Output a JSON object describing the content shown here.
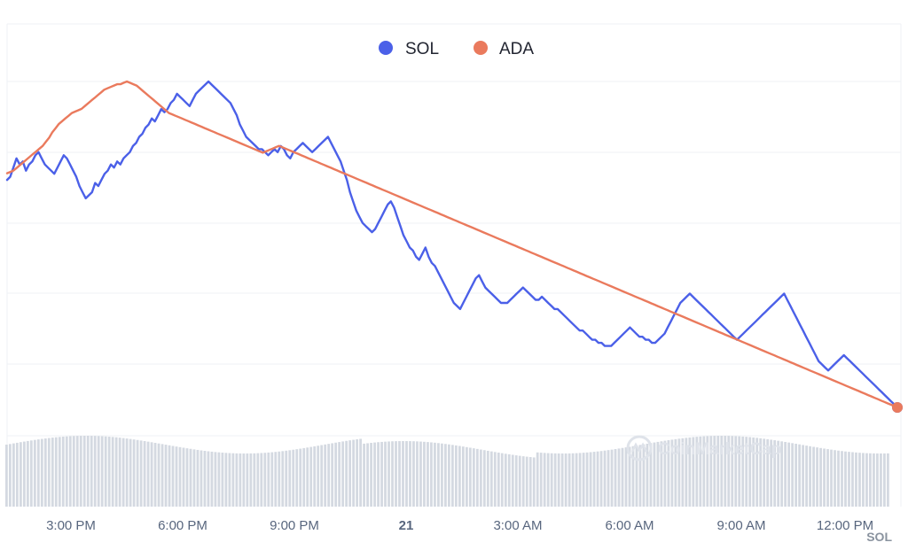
{
  "chart_data": {
    "type": "line",
    "x_labels": [
      "3:00 PM",
      "6:00 PM",
      "9:00 PM",
      "21",
      "3:00 AM",
      "6:00 AM",
      "9:00 AM",
      "12:00 PM"
    ],
    "x_label_emphasis": "21",
    "grid": "horizontal",
    "legend_position": "top-center",
    "series": [
      {
        "name": "SOL",
        "color": "#4b60e8",
        "values": [
          62,
          63,
          66,
          69,
          67,
          68,
          65,
          67,
          68,
          70,
          71,
          69,
          67,
          66,
          65,
          64,
          66,
          68,
          70,
          69,
          67,
          65,
          63,
          60,
          58,
          56,
          57,
          58,
          61,
          60,
          62,
          64,
          65,
          67,
          66,
          68,
          67,
          69,
          70,
          71,
          73,
          74,
          76,
          77,
          79,
          80,
          82,
          81,
          83,
          85,
          84,
          85,
          87,
          88,
          90,
          89,
          88,
          87,
          86,
          88,
          90,
          91,
          92,
          93,
          94,
          93,
          92,
          91,
          90,
          89,
          88,
          87,
          85,
          83,
          80,
          78,
          76,
          75,
          74,
          73,
          72,
          72,
          71,
          70,
          71,
          72,
          71,
          73,
          72,
          70,
          69,
          71,
          72,
          73,
          74,
          73,
          72,
          71,
          72,
          73,
          74,
          75,
          76,
          74,
          72,
          70,
          68,
          65,
          62,
          58,
          55,
          52,
          50,
          48,
          47,
          46,
          45,
          46,
          48,
          50,
          52,
          54,
          55,
          53,
          50,
          47,
          44,
          42,
          40,
          39,
          37,
          36,
          38,
          40,
          37,
          35,
          34,
          32,
          30,
          28,
          26,
          24,
          22,
          21,
          20,
          22,
          24,
          26,
          28,
          30,
          31,
          29,
          27,
          26,
          25,
          24,
          23,
          22,
          22,
          22,
          23,
          24,
          25,
          26,
          27,
          26,
          25,
          24,
          23,
          23,
          24,
          23,
          22,
          21,
          20,
          20,
          19,
          18,
          17,
          16,
          15,
          14,
          13,
          13,
          12,
          11,
          10,
          10,
          9,
          9,
          8,
          8,
          8,
          9,
          10,
          11,
          12,
          13,
          14,
          13,
          12,
          11,
          11,
          10,
          10,
          9,
          9,
          10,
          11,
          12,
          14,
          16,
          18,
          20,
          22,
          23,
          24,
          25,
          24,
          23,
          22,
          21,
          20,
          19,
          18,
          17,
          16,
          15,
          14,
          13,
          12,
          11,
          10,
          11,
          12,
          13,
          14,
          15,
          16,
          17,
          18,
          19,
          20,
          21,
          22,
          23,
          24,
          25,
          23,
          21,
          19,
          17,
          15,
          13,
          11,
          9,
          7,
          5,
          3,
          2,
          1,
          0,
          1,
          2,
          3,
          4,
          5,
          4,
          3,
          2,
          1,
          0,
          -1,
          -2,
          -3,
          -4,
          -5,
          -6,
          -7,
          -8,
          -9,
          -10,
          -11,
          -12
        ]
      },
      {
        "name": "ADA",
        "color": "#ea7a5d",
        "values": [
          30,
          31,
          32,
          34,
          36,
          38,
          40,
          42,
          44,
          46,
          48,
          50,
          53,
          56,
          60,
          63,
          66,
          68,
          70,
          72,
          74,
          75,
          76,
          77,
          79,
          81,
          83,
          85,
          87,
          89,
          91,
          92,
          93,
          94,
          95,
          95,
          96,
          97,
          96,
          95,
          94,
          92,
          90,
          88,
          86,
          84,
          82,
          80,
          78,
          76,
          74,
          73,
          72,
          71,
          70,
          69,
          68,
          67,
          66,
          65,
          64,
          63,
          62,
          61,
          60,
          59,
          58,
          57,
          56,
          55,
          54,
          53,
          52,
          51,
          50,
          49,
          48,
          47,
          46,
          45,
          46,
          47,
          48,
          49,
          50,
          49,
          48,
          47,
          46,
          45,
          44,
          43,
          42,
          41,
          40,
          39,
          38,
          37,
          36,
          35,
          34,
          33,
          32,
          31,
          30,
          29,
          28,
          27,
          26,
          25,
          24,
          23,
          22,
          21,
          20,
          19,
          18,
          17,
          16,
          15,
          14,
          13,
          12,
          11,
          10,
          9,
          8,
          7,
          6,
          5,
          4,
          3,
          2,
          1,
          0,
          -1,
          -2,
          -3,
          -4,
          -5,
          -6,
          -7,
          -8,
          -9,
          -10,
          -11,
          -12,
          -13,
          -14,
          -15,
          -16,
          -17,
          -18,
          -19,
          -20,
          -21,
          -22,
          -23,
          -24,
          -25,
          -26,
          -27,
          -28,
          -29,
          -30,
          -31,
          -32,
          -33,
          -34,
          -35,
          -36,
          -37,
          -38,
          -39,
          -40,
          -41,
          -42,
          -43,
          -44,
          -45,
          -46,
          -47,
          -48,
          -49,
          -50,
          -51,
          -52,
          -53,
          -54,
          -55,
          -56,
          -57,
          -58,
          -59,
          -60,
          -61,
          -62,
          -63,
          -64,
          -65,
          -66,
          -67,
          -68,
          -69,
          -70,
          -71,
          -72,
          -73,
          -74,
          -75,
          -76,
          -77,
          -78,
          -79,
          -80,
          -81,
          -82,
          -83,
          -84,
          -85,
          -86,
          -87,
          -88,
          -89,
          -90,
          -91,
          -92,
          -93,
          -94,
          -95,
          -96,
          -97,
          -98,
          -99,
          -100,
          -101,
          -102,
          -103,
          -104,
          -105,
          -106,
          -107,
          -108,
          -109,
          -110,
          -111,
          -112,
          -113,
          -114,
          -115,
          -116,
          -117,
          -118,
          -119,
          -120,
          -121,
          -122,
          -123,
          -124,
          -125,
          -126,
          -127,
          -128,
          -129,
          -130,
          -131,
          -132,
          -133,
          -134,
          -135,
          -136,
          -137,
          -138,
          -139,
          -140,
          -141
        ]
      }
    ],
    "volume_bars": 250,
    "current_symbol": "SOL"
  },
  "watermark": "CoinMarketCap"
}
